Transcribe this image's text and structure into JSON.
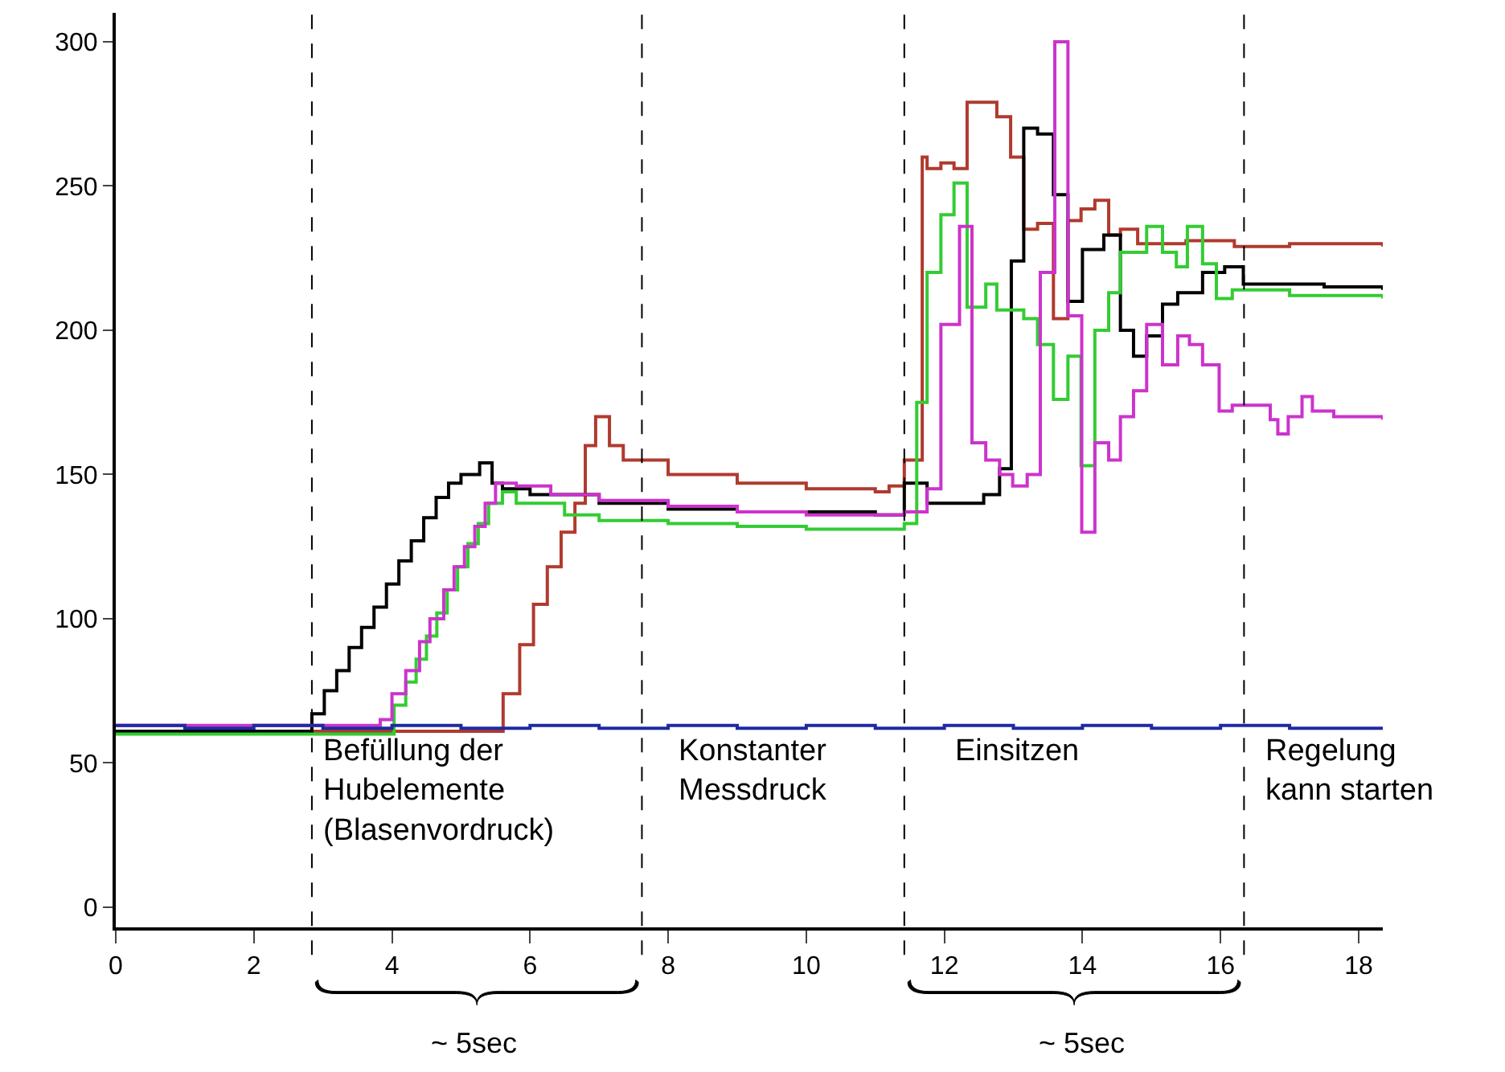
{
  "chart_data": {
    "type": "step",
    "xlim": [
      0,
      18.35
    ],
    "ylim": [
      -7,
      310
    ],
    "xticks": [
      0,
      2,
      4,
      6,
      8,
      10,
      12,
      14,
      16,
      18
    ],
    "yticks": [
      0,
      50,
      100,
      150,
      200,
      250,
      300
    ],
    "marker": "none",
    "line_style": "solid",
    "series": [
      {
        "color": "#b03a2e",
        "x": [
          0,
          5.61,
          5.85,
          6.05,
          6.25,
          6.45,
          6.65,
          6.8,
          6.95,
          7.15,
          7.35,
          8,
          9,
          10,
          11,
          11.2,
          11.42,
          11.68,
          11.75,
          11.95,
          12.14,
          12.33,
          12.76,
          12.96,
          13.15,
          13.35,
          13.58,
          13.79,
          13.98,
          14.18,
          14.38,
          14.55,
          14.8,
          15.5,
          16.2,
          17,
          18.35
        ],
        "values": [
          61,
          74,
          91,
          105,
          118,
          130,
          140,
          160,
          170,
          160,
          155,
          150,
          147,
          145,
          144,
          146,
          155,
          260,
          256,
          258,
          256,
          279,
          274,
          260,
          235,
          237,
          204,
          238,
          242,
          245,
          233,
          235,
          230,
          231,
          229,
          230,
          229
        ]
      },
      {
        "color": "#000000",
        "x": [
          0,
          2.84,
          3.02,
          3.2,
          3.38,
          3.56,
          3.74,
          3.92,
          4.1,
          4.28,
          4.46,
          4.64,
          4.82,
          5.0,
          5.27,
          5.45,
          5.6,
          6,
          7,
          8,
          9,
          11.0,
          11.42,
          11.75,
          12.57,
          12.8,
          12.97,
          13.15,
          13.35,
          13.58,
          13.79,
          14.0,
          14.31,
          14.55,
          14.74,
          14.93,
          15.16,
          15.38,
          15.74,
          16.06,
          16.33,
          17.5,
          18.35
        ],
        "values": [
          61,
          67,
          75,
          82,
          90,
          97,
          104,
          112,
          120,
          127,
          135,
          142,
          147,
          150,
          154,
          147,
          145,
          143,
          140,
          138,
          137,
          136,
          147,
          140,
          143,
          152,
          224,
          270,
          268,
          247,
          210,
          228,
          233,
          200,
          191,
          198,
          209,
          213,
          220,
          222,
          216,
          215,
          214
        ]
      },
      {
        "color": "#33cc33",
        "x": [
          0,
          4.03,
          4.2,
          4.35,
          4.5,
          4.65,
          4.8,
          4.95,
          5.1,
          5.25,
          5.4,
          5.6,
          5.8,
          6.5,
          7,
          8,
          9,
          10,
          11.42,
          11.6,
          11.75,
          11.95,
          12.14,
          12.33,
          12.6,
          12.76,
          13.15,
          13.35,
          13.58,
          13.79,
          13.98,
          14.18,
          14.38,
          14.55,
          14.93,
          15.16,
          15.36,
          15.52,
          15.74,
          15.94,
          16.17,
          17,
          18.35
        ],
        "values": [
          60,
          70,
          78,
          86,
          94,
          102,
          110,
          118,
          126,
          133,
          140,
          144,
          140,
          136,
          134,
          133,
          132,
          131,
          133,
          175,
          220,
          240,
          251,
          208,
          216,
          207,
          204,
          195,
          176,
          191,
          153,
          200,
          213,
          227,
          236,
          227,
          222,
          236,
          223,
          211,
          214,
          212,
          211
        ]
      },
      {
        "color": "#cc33cc",
        "x": [
          0,
          3.83,
          4.0,
          4.2,
          4.4,
          4.55,
          4.75,
          4.9,
          5.05,
          5.2,
          5.35,
          5.5,
          5.8,
          6.3,
          7,
          8,
          9,
          10,
          11.42,
          11.75,
          11.95,
          12.22,
          12.4,
          12.6,
          12.8,
          12.99,
          13.2,
          13.39,
          13.6,
          13.79,
          13.99,
          14.18,
          14.38,
          14.55,
          14.74,
          14.93,
          15.16,
          15.38,
          15.55,
          15.74,
          15.98,
          16.17,
          16.72,
          16.83,
          16.98,
          17.18,
          17.33,
          17.64,
          18.35
        ],
        "values": [
          63,
          65,
          74,
          82,
          92,
          100,
          110,
          118,
          125,
          132,
          140,
          147,
          146,
          143,
          141,
          139,
          137,
          136,
          137,
          145,
          202,
          236,
          161,
          155,
          150,
          146,
          150,
          220,
          300,
          205,
          130,
          161,
          155,
          170,
          179,
          202,
          188,
          198,
          195,
          188,
          172,
          174,
          169,
          164,
          170,
          177,
          172,
          170,
          169
        ]
      },
      {
        "color": "#1f2aa0",
        "x": [
          0,
          1,
          2,
          3,
          4,
          5,
          6,
          7,
          8,
          9,
          10,
          11,
          12,
          13,
          14,
          15,
          16,
          17,
          18.35
        ],
        "values": [
          63,
          62,
          63,
          62,
          63,
          62,
          63,
          62,
          63,
          62,
          63,
          62,
          63,
          62,
          63,
          62,
          63,
          62,
          62
        ]
      }
    ],
    "ref_lines": [
      {
        "axis": "x",
        "value": 2.84,
        "color": "#000000",
        "line_style": "dashed"
      },
      {
        "axis": "x",
        "value": 7.62,
        "color": "#000000",
        "line_style": "dashed"
      },
      {
        "axis": "x",
        "value": 11.42,
        "color": "#000000",
        "line_style": "dashed"
      },
      {
        "axis": "x",
        "value": 16.34,
        "color": "#000000",
        "line_style": "dashed"
      }
    ],
    "annotations": [
      "Befüllung der\nHubelemente\n(Blasenvordruck)",
      "Konstanter\nMessdruck",
      "Einsitzen",
      "Regelung\nkann starten",
      "~ 5sec",
      "~ 5sec"
    ]
  }
}
